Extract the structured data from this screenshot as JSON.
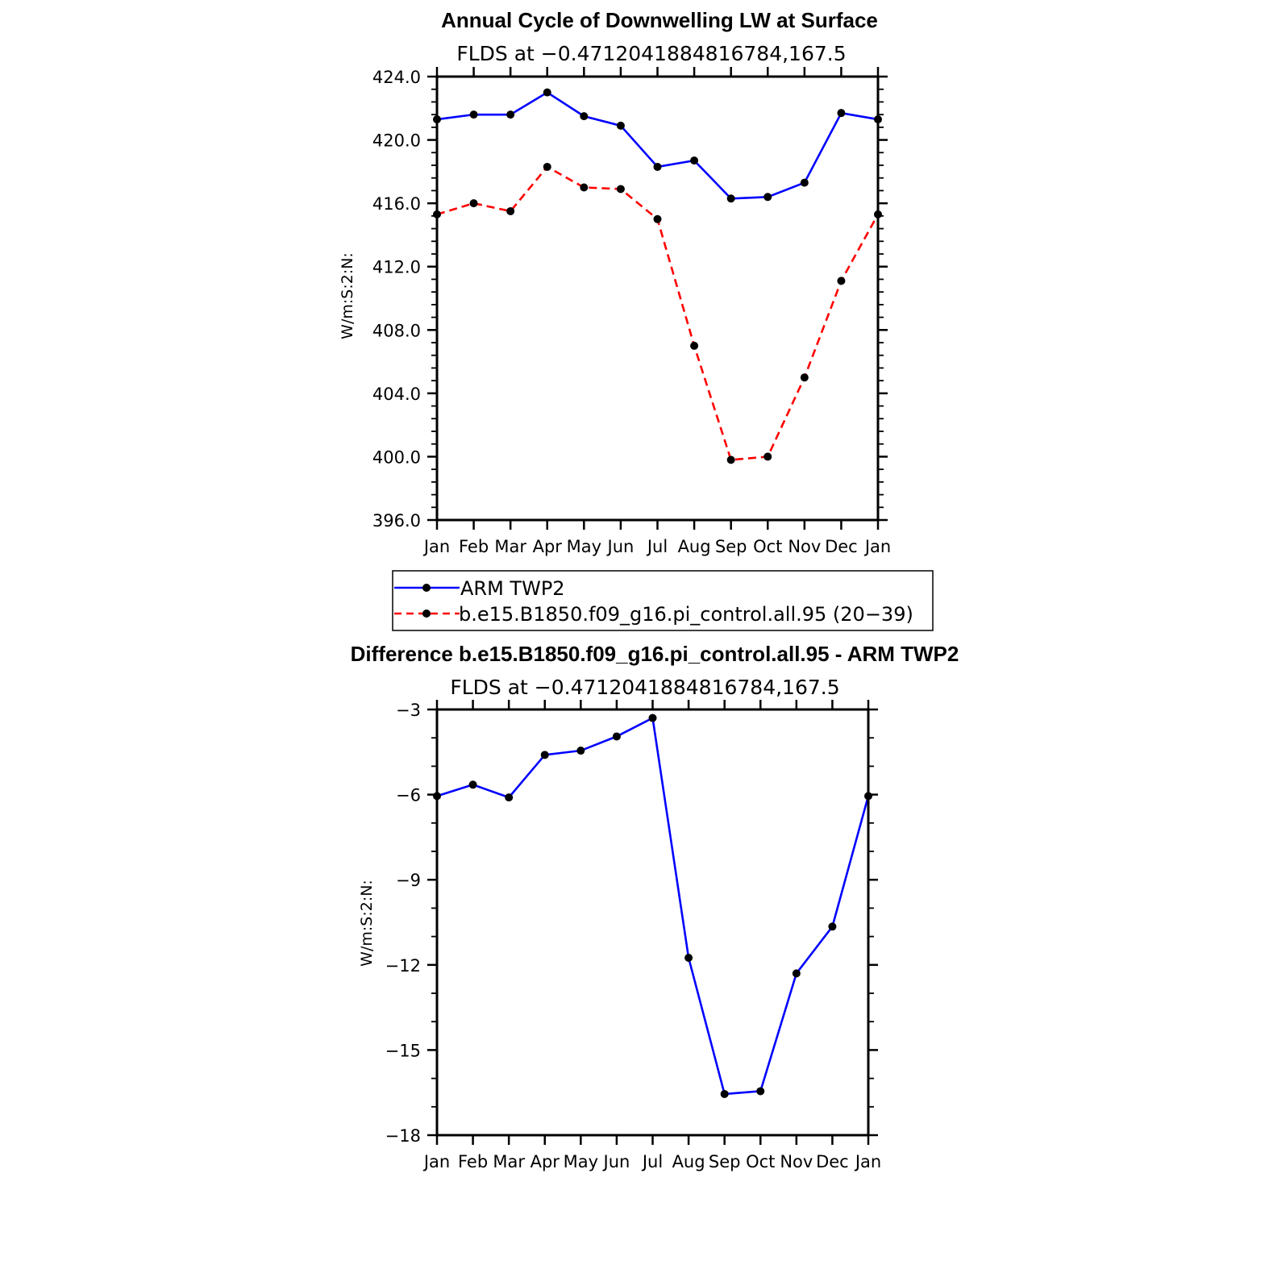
{
  "chart_data": [
    {
      "type": "line",
      "title": "Annual Cycle of Downwelling LW at Surface",
      "subtitle": "FLDS at −0.4712041884816784,167.5",
      "ylabel": "W/m:S:2:N:",
      "xlabel": "",
      "categories": [
        "Jan",
        "Feb",
        "Mar",
        "Apr",
        "May",
        "Jun",
        "Jul",
        "Aug",
        "Sep",
        "Oct",
        "Nov",
        "Dec",
        "Jan"
      ],
      "ylim": [
        396.0,
        424.0
      ],
      "yticks": [
        "396.0",
        "400.0",
        "404.0",
        "408.0",
        "412.0",
        "416.0",
        "420.0",
        "424.0"
      ],
      "series": [
        {
          "name": "ARM TWP2",
          "color": "#0000ff",
          "dash": "solid",
          "values": [
            421.3,
            421.6,
            421.6,
            423.0,
            421.5,
            420.9,
            418.3,
            418.7,
            416.3,
            416.4,
            417.3,
            421.7,
            421.3
          ]
        },
        {
          "name": "b.e15.B1850.f09_g16.pi_control.all.95 (20−39)",
          "color": "#ff0000",
          "dash": "dashed",
          "values": [
            415.3,
            416.0,
            415.5,
            418.3,
            417.0,
            416.9,
            415.0,
            407.0,
            399.8,
            400.0,
            405.0,
            411.1,
            415.3
          ]
        }
      ],
      "legend": "below"
    },
    {
      "type": "line",
      "title": "Difference b.e15.B1850.f09_g16.pi_control.all.95 - ARM TWP2",
      "subtitle": "FLDS at −0.4712041884816784,167.5",
      "ylabel": "W/m:S:2:N:",
      "xlabel": "",
      "categories": [
        "Jan",
        "Feb",
        "Mar",
        "Apr",
        "May",
        "Jun",
        "Jul",
        "Aug",
        "Sep",
        "Oct",
        "Nov",
        "Dec",
        "Jan"
      ],
      "ylim": [
        -18,
        -3
      ],
      "yticks": [
        "−18",
        "−15",
        "−12",
        "−9",
        "−6",
        "−3"
      ],
      "series": [
        {
          "name": "Difference",
          "color": "#0000ff",
          "dash": "solid",
          "values": [
            -6.05,
            -5.65,
            -6.1,
            -4.6,
            -4.45,
            -3.95,
            -3.3,
            -11.75,
            -16.55,
            -16.45,
            -12.3,
            -10.65,
            -6.05
          ]
        }
      ]
    }
  ]
}
